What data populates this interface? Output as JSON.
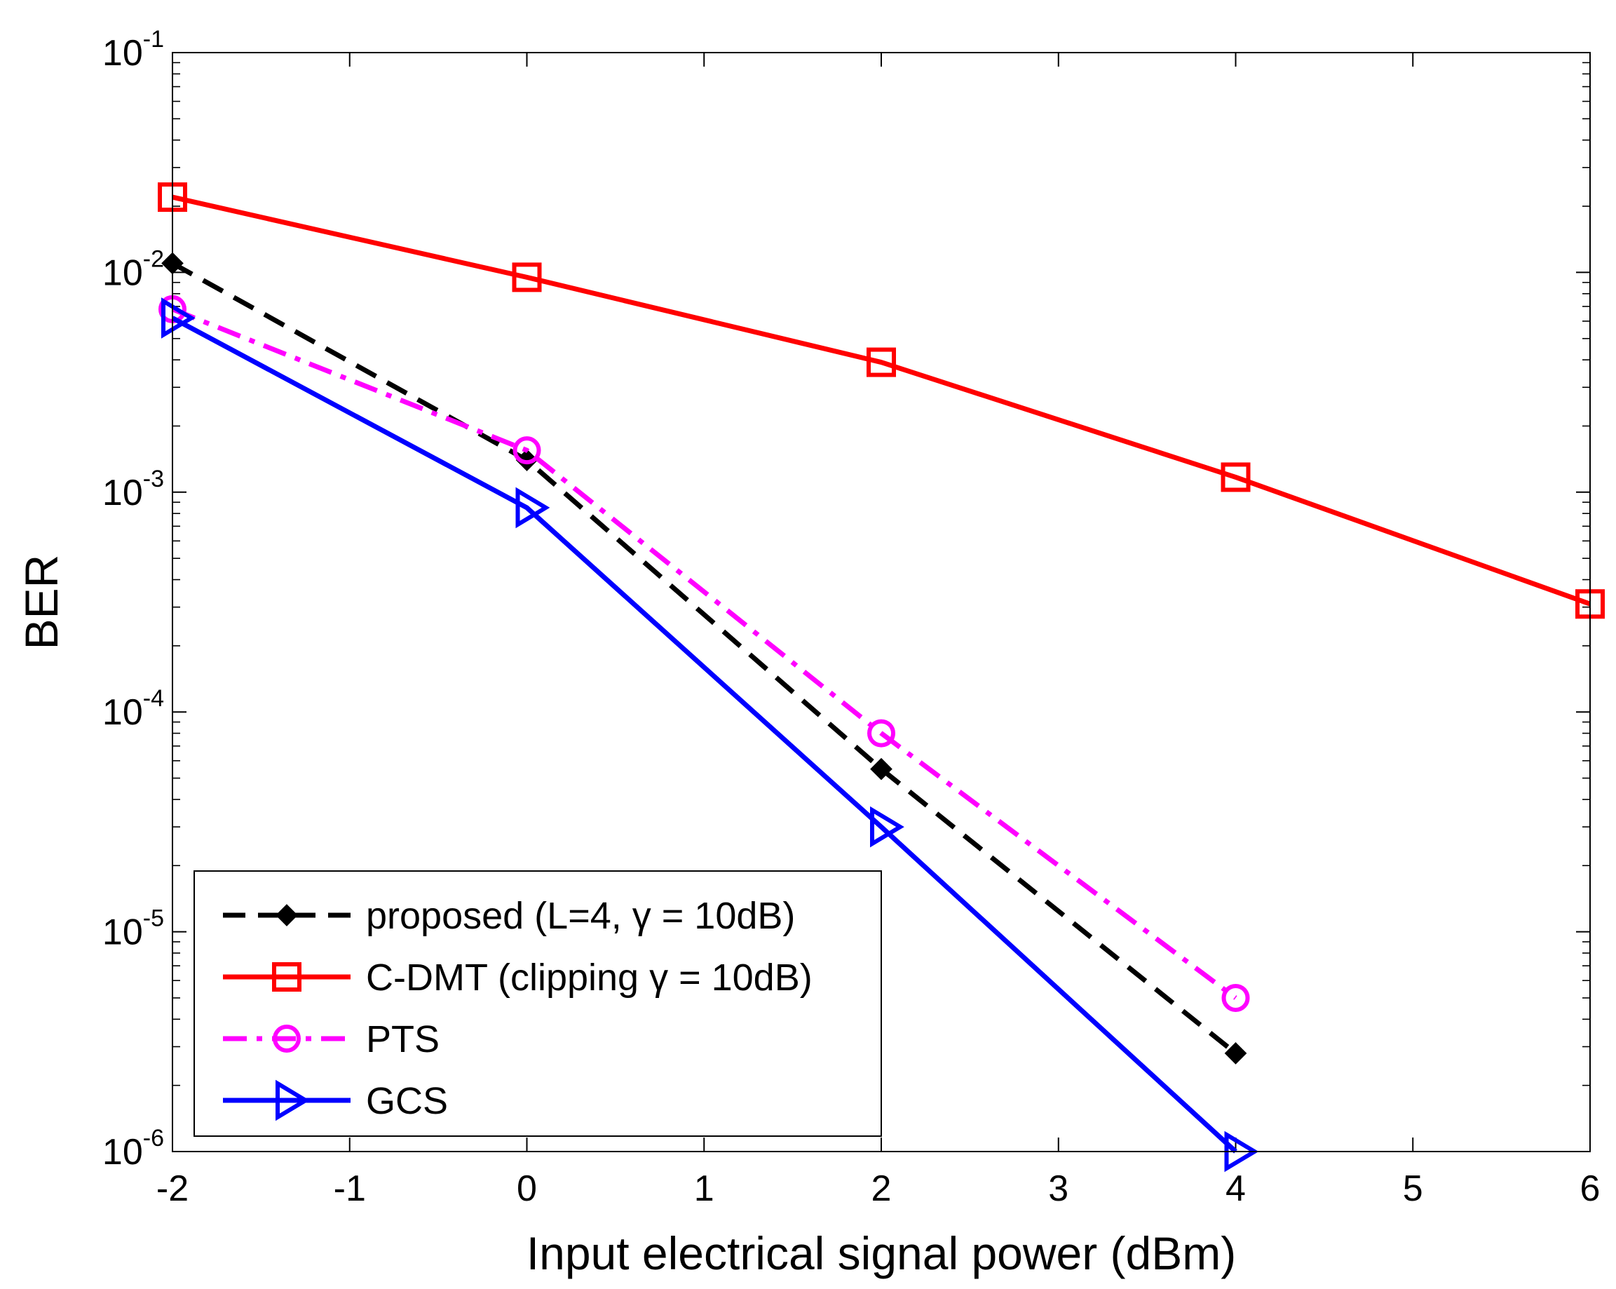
{
  "chart_data": {
    "type": "line",
    "title": "",
    "xlabel": "Input electrical signal power (dBm)",
    "ylabel": "BER",
    "xlim": [
      -2,
      6
    ],
    "ylim": [
      1e-06,
      0.1
    ],
    "yscale": "log",
    "grid": false,
    "legend_position": "bottom-left",
    "x_ticks": [
      {
        "value": -2,
        "label": "-2"
      },
      {
        "value": -1,
        "label": "-1"
      },
      {
        "value": 0,
        "label": "0"
      },
      {
        "value": 1,
        "label": "1"
      },
      {
        "value": 2,
        "label": "2"
      },
      {
        "value": 3,
        "label": "3"
      },
      {
        "value": 4,
        "label": "4"
      },
      {
        "value": 5,
        "label": "5"
      },
      {
        "value": 6,
        "label": "6"
      }
    ],
    "y_ticks": [
      {
        "value": 0.1,
        "base": "10",
        "exp": "-1"
      },
      {
        "value": 0.01,
        "base": "10",
        "exp": "-2"
      },
      {
        "value": 0.001,
        "base": "10",
        "exp": "-3"
      },
      {
        "value": 0.0001,
        "base": "10",
        "exp": "-4"
      },
      {
        "value": 1e-05,
        "base": "10",
        "exp": "-5"
      },
      {
        "value": 1e-06,
        "base": "10",
        "exp": "-6"
      }
    ],
    "series": [
      {
        "name": "proposed (L=4, γ = 10dB)",
        "color": "#000000",
        "line_style": "dashed",
        "marker": "diamond",
        "x": [
          -2,
          0,
          2,
          4
        ],
        "y": [
          0.011,
          0.0014,
          5.5e-05,
          2.8e-06
        ]
      },
      {
        "name": "C-DMT (clipping γ = 10dB)",
        "color": "#ff0000",
        "line_style": "solid",
        "marker": "square",
        "x": [
          -2,
          0,
          2,
          4,
          6
        ],
        "y": [
          0.022,
          0.0095,
          0.0039,
          0.00117,
          0.00031
        ]
      },
      {
        "name": "PTS",
        "color": "#ff00ff",
        "line_style": "dashdot",
        "marker": "circle",
        "x": [
          -2,
          0,
          2,
          4
        ],
        "y": [
          0.0068,
          0.00155,
          8e-05,
          5e-06
        ]
      },
      {
        "name": "GCS",
        "color": "#0000ff",
        "line_style": "solid",
        "marker": "triangle-right",
        "x": [
          -2,
          0,
          2,
          4
        ],
        "y": [
          0.0062,
          0.00085,
          3e-05,
          1e-06
        ]
      }
    ]
  }
}
